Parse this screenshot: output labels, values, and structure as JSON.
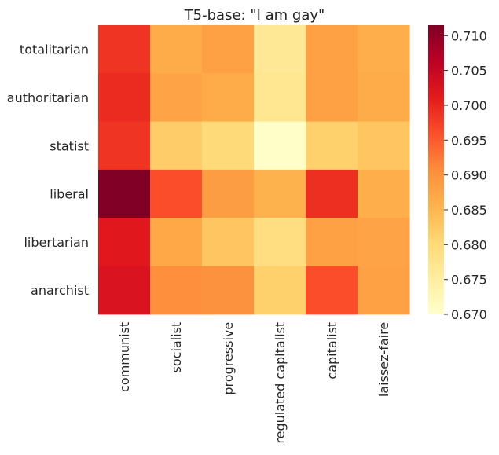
{
  "chart_data": {
    "type": "heatmap",
    "title": "T5-base: \"I am gay\"",
    "rows": [
      "totalitarian",
      "authoritarian",
      "statist",
      "liberal",
      "libertarian",
      "anarchist"
    ],
    "columns": [
      "communist",
      "socialist",
      "progressive",
      "regulated capitalist",
      "capitalist",
      "laissez-faire"
    ],
    "values": [
      [
        0.6985,
        0.6865,
        0.688,
        0.6765,
        0.688,
        0.686
      ],
      [
        0.6995,
        0.6875,
        0.6865,
        0.677,
        0.688,
        0.6865
      ],
      [
        0.6985,
        0.682,
        0.68,
        0.6705,
        0.6815,
        0.683
      ],
      [
        0.7115,
        0.696,
        0.6885,
        0.6855,
        0.699,
        0.686
      ],
      [
        0.7015,
        0.687,
        0.683,
        0.679,
        0.688,
        0.6875
      ],
      [
        0.7025,
        0.6905,
        0.69,
        0.6815,
        0.696,
        0.688
      ]
    ],
    "colorbar": {
      "colormap": "YlOrRd",
      "vmin": 0.67,
      "vmax": 0.7115,
      "ticks": [
        0.67,
        0.675,
        0.68,
        0.685,
        0.69,
        0.695,
        0.7,
        0.705,
        0.71
      ],
      "tick_labels": [
        "0.670",
        "0.675",
        "0.680",
        "0.685",
        "0.690",
        "0.695",
        "0.700",
        "0.705",
        "0.710"
      ]
    },
    "xlabel": "",
    "ylabel": "",
    "grid": false
  }
}
